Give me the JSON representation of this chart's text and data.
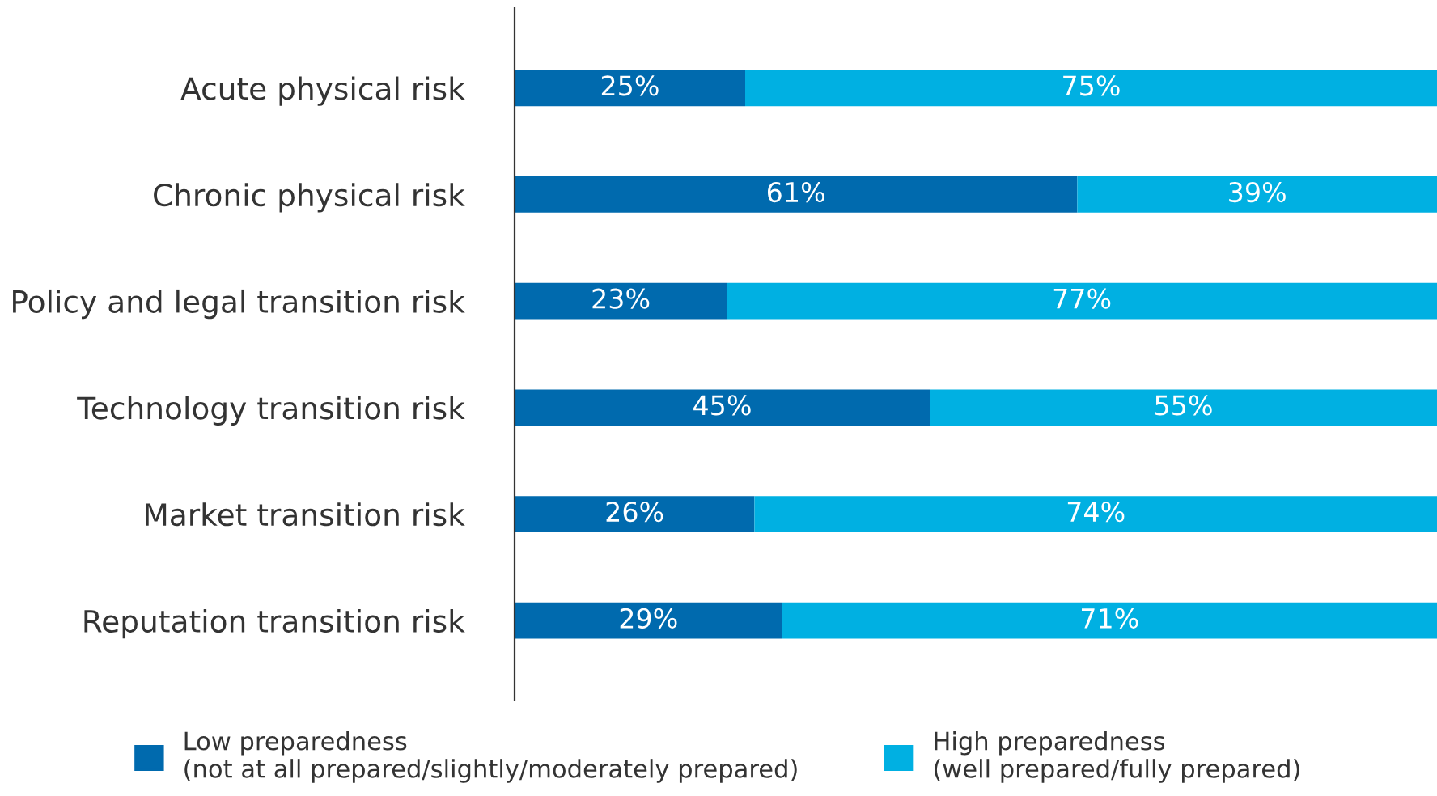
{
  "chart_data": {
    "type": "bar",
    "orientation": "horizontal",
    "stacked": true,
    "categories": [
      "Acute physical risk",
      "Chronic physical risk",
      "Policy and legal transition risk",
      "Technology transition risk",
      "Market transition risk",
      "Reputation transition risk"
    ],
    "series": [
      {
        "name": "Low preparedness\n(not at all prepared/slightly/moderately prepared)",
        "color": "#006aae",
        "values": [
          25,
          61,
          23,
          45,
          26,
          29
        ],
        "value_labels": [
          "25%",
          "61%",
          "23%",
          "45%",
          "26%",
          "29%"
        ]
      },
      {
        "name": "High preparedness\n(well prepared/fully prepared)",
        "color": "#00b0e2",
        "values": [
          75,
          39,
          77,
          55,
          74,
          71
        ],
        "value_labels": [
          "75%",
          "39%",
          "77%",
          "55%",
          "74%",
          "71%"
        ]
      }
    ],
    "xlim": [
      0,
      100
    ],
    "tick_labels": "y",
    "grid": false,
    "legend": "bottom"
  }
}
